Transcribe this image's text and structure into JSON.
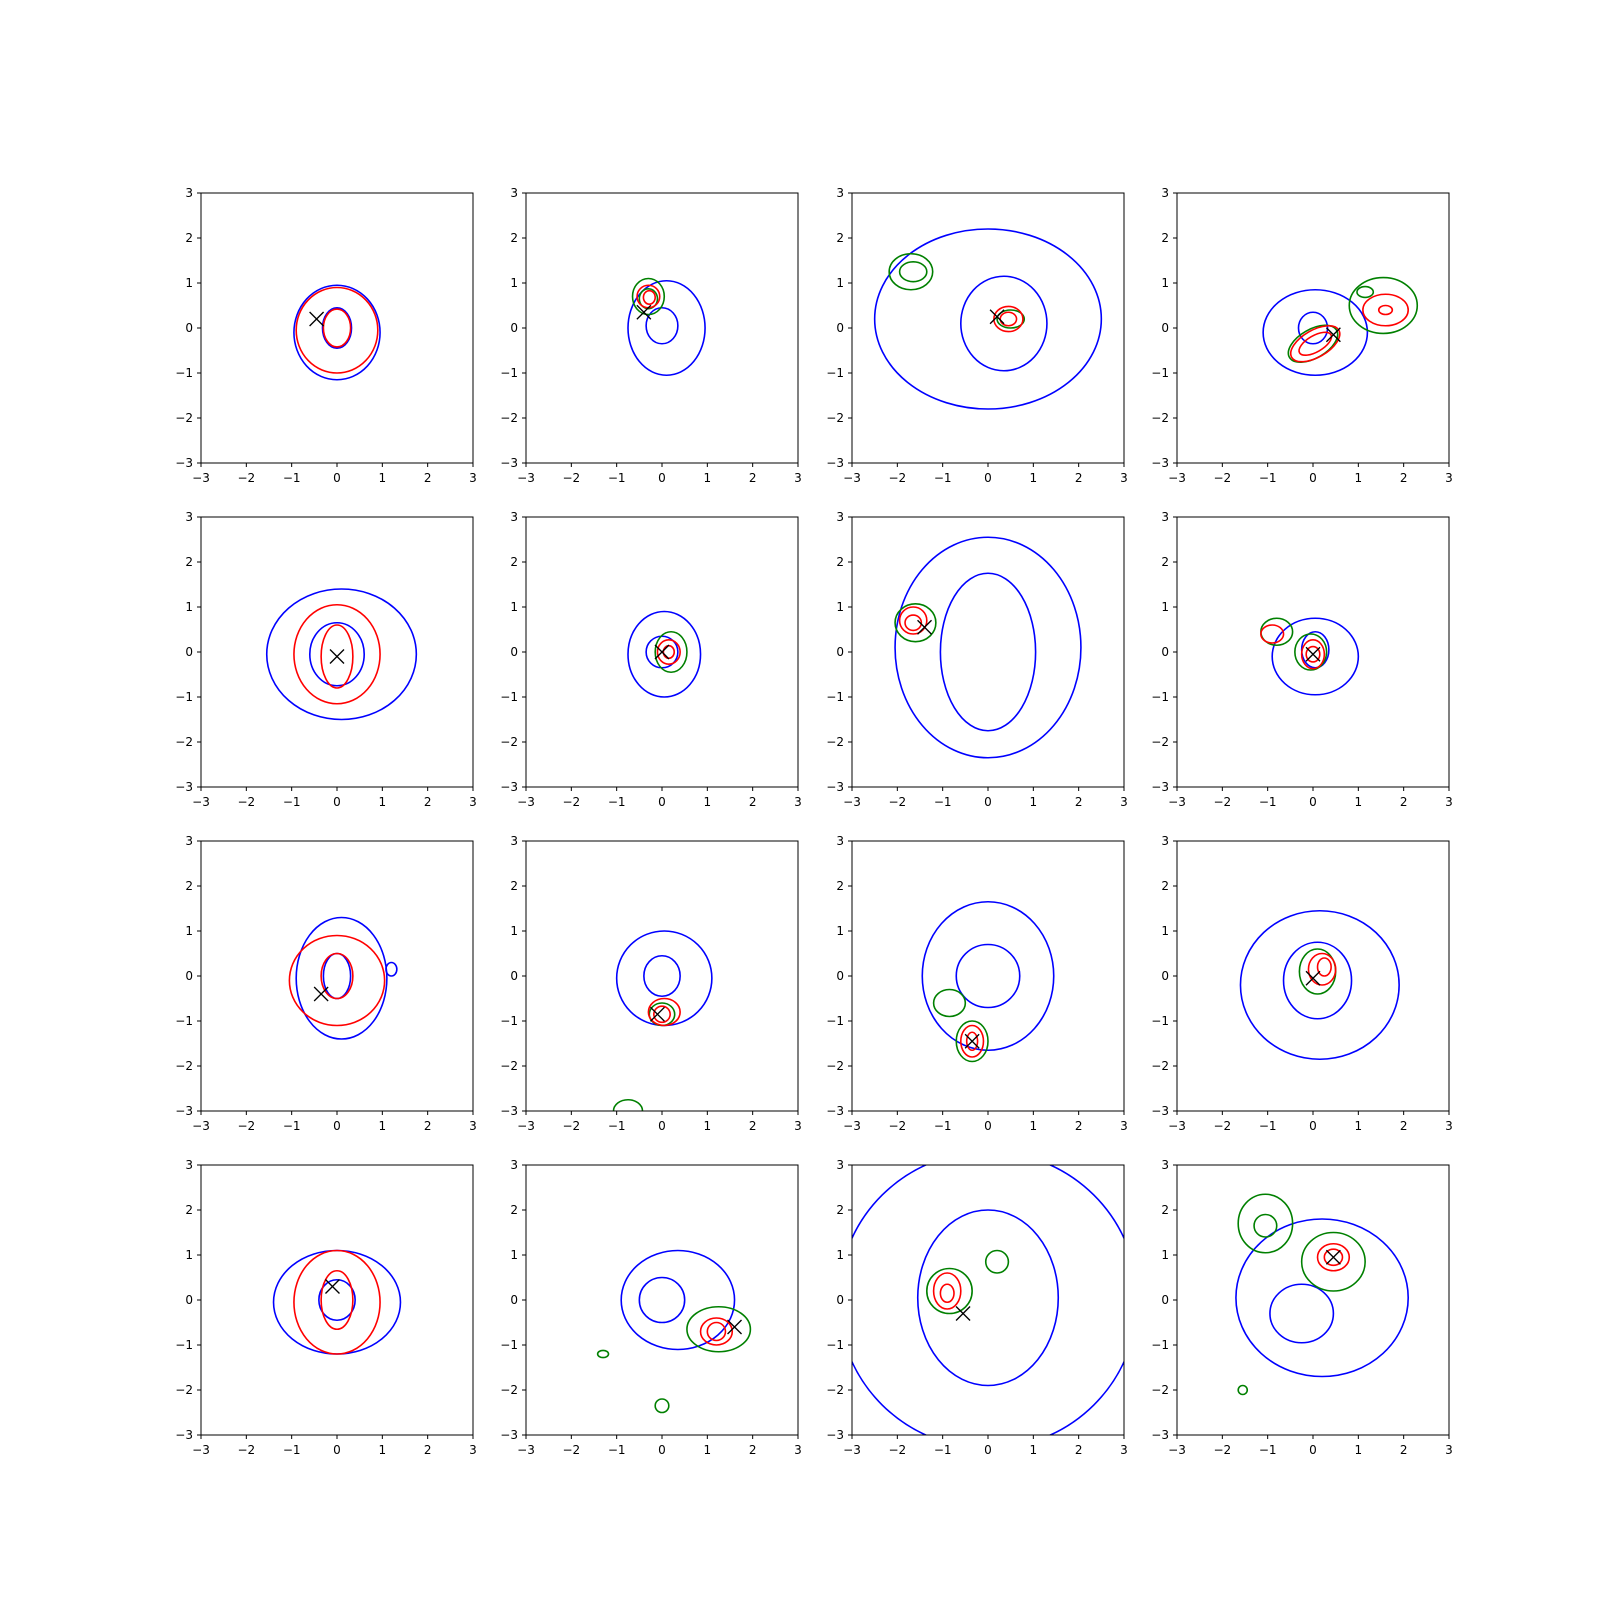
{
  "chart_data": {
    "type": "contour-grid",
    "grid": {
      "rows": 4,
      "cols": 4
    },
    "xlim": [
      -3,
      3
    ],
    "ylim": [
      -3,
      3
    ],
    "xticks": [
      -3,
      -2,
      -1,
      0,
      1,
      2,
      3
    ],
    "yticks": [
      -3,
      -2,
      -1,
      0,
      1,
      2,
      3
    ],
    "tick_labels": [
      "−3",
      "−2",
      "−1",
      "0",
      "1",
      "2",
      "3"
    ],
    "colors": {
      "blue": "#0000ff",
      "red": "#ff0000",
      "green": "#008000",
      "marker": "#000000"
    },
    "marker_symbol": "×",
    "panels": [
      {
        "marker": [
          -0.45,
          0.2
        ],
        "contours": [
          {
            "color": "blue",
            "cx": 0.0,
            "cy": -0.1,
            "rx": 0.95,
            "ry": 1.05
          },
          {
            "color": "blue",
            "cx": 0.0,
            "cy": 0.0,
            "rx": 0.32,
            "ry": 0.45
          },
          {
            "color": "red",
            "cx": 0.0,
            "cy": -0.05,
            "rx": 0.9,
            "ry": 0.95
          },
          {
            "color": "red",
            "cx": 0.0,
            "cy": 0.0,
            "rx": 0.3,
            "ry": 0.42
          }
        ]
      },
      {
        "marker": [
          -0.4,
          0.35
        ],
        "contours": [
          {
            "color": "blue",
            "cx": 0.1,
            "cy": 0.0,
            "rx": 0.85,
            "ry": 1.05
          },
          {
            "color": "blue",
            "cx": 0.0,
            "cy": 0.05,
            "rx": 0.35,
            "ry": 0.4
          },
          {
            "color": "green",
            "cx": -0.3,
            "cy": 0.7,
            "rx": 0.35,
            "ry": 0.4
          },
          {
            "color": "green",
            "cx": -0.3,
            "cy": 0.65,
            "rx": 0.2,
            "ry": 0.22
          },
          {
            "color": "red",
            "cx": -0.3,
            "cy": 0.7,
            "rx": 0.25,
            "ry": 0.25
          },
          {
            "color": "red",
            "cx": -0.28,
            "cy": 0.68,
            "rx": 0.13,
            "ry": 0.15
          }
        ]
      },
      {
        "marker": [
          0.2,
          0.25
        ],
        "contours": [
          {
            "color": "blue",
            "cx": 0.0,
            "cy": 0.2,
            "rx": 2.5,
            "ry": 2.0
          },
          {
            "color": "blue",
            "cx": 0.35,
            "cy": 0.1,
            "rx": 0.95,
            "ry": 1.05
          },
          {
            "color": "green",
            "cx": -1.7,
            "cy": 1.25,
            "rx": 0.48,
            "ry": 0.4
          },
          {
            "color": "green",
            "cx": -1.65,
            "cy": 1.25,
            "rx": 0.3,
            "ry": 0.22
          },
          {
            "color": "green",
            "cx": 0.5,
            "cy": 0.2,
            "rx": 0.3,
            "ry": 0.2
          },
          {
            "color": "red",
            "cx": 0.45,
            "cy": 0.2,
            "rx": 0.32,
            "ry": 0.28
          },
          {
            "color": "red",
            "cx": 0.45,
            "cy": 0.2,
            "rx": 0.18,
            "ry": 0.15
          }
        ]
      },
      {
        "marker": [
          0.45,
          -0.15
        ],
        "contours": [
          {
            "color": "blue",
            "cx": 0.05,
            "cy": -0.1,
            "rx": 1.15,
            "ry": 0.95
          },
          {
            "color": "blue",
            "cx": 0.0,
            "cy": 0.0,
            "rx": 0.32,
            "ry": 0.35
          },
          {
            "color": "green",
            "cx": 1.55,
            "cy": 0.5,
            "rx": 0.75,
            "ry": 0.62
          },
          {
            "color": "green",
            "cx": 1.15,
            "cy": 0.8,
            "rx": 0.18,
            "ry": 0.12
          },
          {
            "color": "green",
            "cx": 0.0,
            "cy": -0.35,
            "rx": 0.6,
            "ry": 0.32,
            "rot": -30
          },
          {
            "color": "red",
            "cx": 1.6,
            "cy": 0.4,
            "rx": 0.5,
            "ry": 0.35
          },
          {
            "color": "red",
            "cx": 1.6,
            "cy": 0.4,
            "rx": 0.15,
            "ry": 0.1
          },
          {
            "color": "red",
            "cx": 0.05,
            "cy": -0.35,
            "rx": 0.6,
            "ry": 0.3,
            "rot": -30
          },
          {
            "color": "red",
            "cx": 0.05,
            "cy": -0.35,
            "rx": 0.4,
            "ry": 0.18,
            "rot": -30
          }
        ]
      },
      {
        "marker": [
          0.0,
          -0.1
        ],
        "contours": [
          {
            "color": "blue",
            "cx": 0.1,
            "cy": -0.05,
            "rx": 1.65,
            "ry": 1.45
          },
          {
            "color": "blue",
            "cx": 0.0,
            "cy": -0.05,
            "rx": 0.6,
            "ry": 0.7
          },
          {
            "color": "red",
            "cx": 0.0,
            "cy": -0.05,
            "rx": 0.95,
            "ry": 1.1
          },
          {
            "color": "red",
            "cx": 0.0,
            "cy": -0.1,
            "rx": 0.35,
            "ry": 0.7
          }
        ]
      },
      {
        "marker": [
          0.0,
          0.0
        ],
        "contours": [
          {
            "color": "blue",
            "cx": 0.05,
            "cy": -0.05,
            "rx": 0.8,
            "ry": 0.95
          },
          {
            "color": "blue",
            "cx": 0.0,
            "cy": 0.0,
            "rx": 0.35,
            "ry": 0.35
          },
          {
            "color": "green",
            "cx": 0.2,
            "cy": 0.0,
            "rx": 0.35,
            "ry": 0.45
          },
          {
            "color": "red",
            "cx": 0.15,
            "cy": 0.0,
            "rx": 0.25,
            "ry": 0.27
          },
          {
            "color": "red",
            "cx": 0.15,
            "cy": 0.0,
            "rx": 0.12,
            "ry": 0.14
          }
        ]
      },
      {
        "marker": [
          -1.4,
          0.55
        ],
        "contours": [
          {
            "color": "blue",
            "cx": 0.0,
            "cy": 0.1,
            "rx": 2.05,
            "ry": 2.45
          },
          {
            "color": "blue",
            "cx": 0.0,
            "cy": 0.0,
            "rx": 1.05,
            "ry": 1.75
          },
          {
            "color": "green",
            "cx": -1.6,
            "cy": 0.65,
            "rx": 0.45,
            "ry": 0.42
          },
          {
            "color": "red",
            "cx": -1.65,
            "cy": 0.7,
            "rx": 0.3,
            "ry": 0.3
          },
          {
            "color": "red",
            "cx": -1.65,
            "cy": 0.65,
            "rx": 0.18,
            "ry": 0.17
          }
        ]
      },
      {
        "marker": [
          0.0,
          -0.05
        ],
        "contours": [
          {
            "color": "blue",
            "cx": 0.05,
            "cy": -0.1,
            "rx": 0.95,
            "ry": 0.85
          },
          {
            "color": "blue",
            "cx": 0.05,
            "cy": 0.05,
            "rx": 0.3,
            "ry": 0.4
          },
          {
            "color": "green",
            "cx": -0.8,
            "cy": 0.45,
            "rx": 0.35,
            "ry": 0.3
          },
          {
            "color": "green",
            "cx": -0.05,
            "cy": 0.0,
            "rx": 0.35,
            "ry": 0.4
          },
          {
            "color": "red",
            "cx": -0.9,
            "cy": 0.4,
            "rx": 0.25,
            "ry": 0.2
          },
          {
            "color": "red",
            "cx": 0.0,
            "cy": -0.05,
            "rx": 0.25,
            "ry": 0.32
          },
          {
            "color": "red",
            "cx": 0.0,
            "cy": -0.05,
            "rx": 0.15,
            "ry": 0.17
          }
        ]
      },
      {
        "marker": [
          -0.35,
          -0.4
        ],
        "contours": [
          {
            "color": "blue",
            "cx": 0.1,
            "cy": -0.05,
            "rx": 1.0,
            "ry": 1.35
          },
          {
            "color": "blue",
            "cx": 0.0,
            "cy": 0.0,
            "rx": 0.3,
            "ry": 0.5
          },
          {
            "color": "blue",
            "cx": 1.2,
            "cy": 0.15,
            "rx": 0.12,
            "ry": 0.15
          },
          {
            "color": "red",
            "cx": 0.0,
            "cy": -0.1,
            "rx": 1.05,
            "ry": 1.0
          },
          {
            "color": "red",
            "cx": 0.0,
            "cy": 0.0,
            "rx": 0.35,
            "ry": 0.5
          }
        ]
      },
      {
        "marker": [
          -0.1,
          -0.85
        ],
        "contours": [
          {
            "color": "blue",
            "cx": 0.05,
            "cy": -0.05,
            "rx": 1.05,
            "ry": 1.05
          },
          {
            "color": "blue",
            "cx": 0.0,
            "cy": 0.0,
            "rx": 0.4,
            "ry": 0.45
          },
          {
            "color": "green",
            "cx": 0.0,
            "cy": -0.85,
            "rx": 0.28,
            "ry": 0.25
          },
          {
            "color": "green",
            "cx": -0.75,
            "cy": -3.0,
            "rx": 0.32,
            "ry": 0.25
          },
          {
            "color": "red",
            "cx": 0.05,
            "cy": -0.8,
            "rx": 0.35,
            "ry": 0.3
          },
          {
            "color": "red",
            "cx": 0.0,
            "cy": -0.85,
            "rx": 0.18,
            "ry": 0.18
          }
        ]
      },
      {
        "marker": [
          -0.35,
          -1.45
        ],
        "contours": [
          {
            "color": "blue",
            "cx": 0.0,
            "cy": 0.0,
            "rx": 1.45,
            "ry": 1.65
          },
          {
            "color": "blue",
            "cx": 0.0,
            "cy": 0.0,
            "rx": 0.7,
            "ry": 0.7
          },
          {
            "color": "green",
            "cx": -0.85,
            "cy": -0.6,
            "rx": 0.35,
            "ry": 0.3
          },
          {
            "color": "green",
            "cx": -0.35,
            "cy": -1.45,
            "rx": 0.35,
            "ry": 0.45
          },
          {
            "color": "red",
            "cx": -0.35,
            "cy": -1.45,
            "rx": 0.25,
            "ry": 0.35
          },
          {
            "color": "red",
            "cx": -0.35,
            "cy": -1.45,
            "rx": 0.12,
            "ry": 0.2
          }
        ]
      },
      {
        "marker": [
          0.0,
          -0.05
        ],
        "contours": [
          {
            "color": "blue",
            "cx": 0.15,
            "cy": -0.2,
            "rx": 1.75,
            "ry": 1.65
          },
          {
            "color": "blue",
            "cx": 0.1,
            "cy": -0.1,
            "rx": 0.75,
            "ry": 0.85
          },
          {
            "color": "green",
            "cx": 0.1,
            "cy": 0.1,
            "rx": 0.4,
            "ry": 0.5
          },
          {
            "color": "red",
            "cx": 0.2,
            "cy": 0.15,
            "rx": 0.3,
            "ry": 0.35
          },
          {
            "color": "red",
            "cx": 0.25,
            "cy": 0.2,
            "rx": 0.15,
            "ry": 0.2
          }
        ]
      },
      {
        "marker": [
          -0.1,
          0.3
        ],
        "contours": [
          {
            "color": "blue",
            "cx": 0.0,
            "cy": -0.05,
            "rx": 1.4,
            "ry": 1.15
          },
          {
            "color": "blue",
            "cx": 0.0,
            "cy": 0.0,
            "rx": 0.4,
            "ry": 0.45
          },
          {
            "color": "red",
            "cx": 0.0,
            "cy": -0.05,
            "rx": 0.95,
            "ry": 1.15
          },
          {
            "color": "red",
            "cx": 0.0,
            "cy": 0.0,
            "rx": 0.35,
            "ry": 0.65
          }
        ]
      },
      {
        "marker": [
          1.6,
          -0.6
        ],
        "contours": [
          {
            "color": "blue",
            "cx": 0.35,
            "cy": 0.0,
            "rx": 1.25,
            "ry": 1.1
          },
          {
            "color": "blue",
            "cx": 0.0,
            "cy": 0.0,
            "rx": 0.5,
            "ry": 0.5
          },
          {
            "color": "green",
            "cx": 1.25,
            "cy": -0.65,
            "rx": 0.7,
            "ry": 0.5
          },
          {
            "color": "green",
            "cx": -1.3,
            "cy": -1.2,
            "rx": 0.12,
            "ry": 0.08
          },
          {
            "color": "green",
            "cx": 0.0,
            "cy": -2.35,
            "rx": 0.15,
            "ry": 0.15
          },
          {
            "color": "red",
            "cx": 1.2,
            "cy": -0.7,
            "rx": 0.35,
            "ry": 0.3
          },
          {
            "color": "red",
            "cx": 1.2,
            "cy": -0.7,
            "rx": 0.2,
            "ry": 0.2
          }
        ]
      },
      {
        "marker": [
          -0.55,
          -0.3
        ],
        "contours": [
          {
            "color": "blue",
            "cx": 0.0,
            "cy": 0.0,
            "rx": 3.3,
            "ry": 3.3
          },
          {
            "color": "blue",
            "cx": 0.0,
            "cy": 0.05,
            "rx": 1.55,
            "ry": 1.95
          },
          {
            "color": "green",
            "cx": -0.85,
            "cy": 0.2,
            "rx": 0.5,
            "ry": 0.5
          },
          {
            "color": "green",
            "cx": 0.2,
            "cy": 0.85,
            "rx": 0.25,
            "ry": 0.25
          },
          {
            "color": "red",
            "cx": -0.9,
            "cy": 0.2,
            "rx": 0.3,
            "ry": 0.4
          },
          {
            "color": "red",
            "cx": -0.9,
            "cy": 0.15,
            "rx": 0.15,
            "ry": 0.2
          }
        ]
      },
      {
        "marker": [
          0.45,
          0.95
        ],
        "contours": [
          {
            "color": "blue",
            "cx": 0.2,
            "cy": 0.05,
            "rx": 1.9,
            "ry": 1.75
          },
          {
            "color": "blue",
            "cx": -0.25,
            "cy": -0.3,
            "rx": 0.7,
            "ry": 0.65
          },
          {
            "color": "green",
            "cx": -1.05,
            "cy": 1.7,
            "rx": 0.6,
            "ry": 0.65
          },
          {
            "color": "green",
            "cx": -1.05,
            "cy": 1.65,
            "rx": 0.25,
            "ry": 0.25
          },
          {
            "color": "green",
            "cx": 0.45,
            "cy": 0.85,
            "rx": 0.7,
            "ry": 0.65
          },
          {
            "color": "green",
            "cx": -1.55,
            "cy": -2.0,
            "rx": 0.1,
            "ry": 0.1
          },
          {
            "color": "red",
            "cx": 0.45,
            "cy": 0.95,
            "rx": 0.35,
            "ry": 0.3
          },
          {
            "color": "red",
            "cx": 0.45,
            "cy": 0.95,
            "rx": 0.2,
            "ry": 0.18
          }
        ]
      }
    ]
  }
}
